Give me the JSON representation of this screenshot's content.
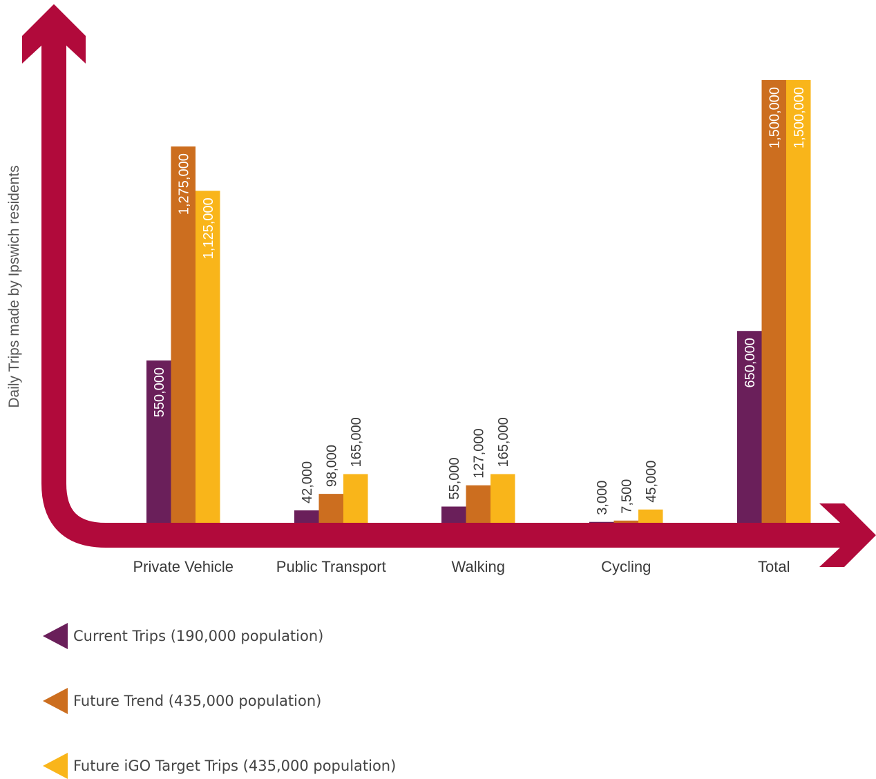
{
  "chart_data": {
    "type": "bar",
    "title": "",
    "ylabel": "Daily Trips made by Ipswich residents",
    "xlabel": "",
    "ylim": [
      0,
      1500000
    ],
    "categories": [
      "Private Vehicle",
      "Public Transport",
      "Walking",
      "Cycling",
      "Total"
    ],
    "series": [
      {
        "name": "Current Trips (190,000 population)",
        "color": "#6a1f5a",
        "values": [
          550000,
          42000,
          55000,
          3000,
          650000
        ],
        "labels": [
          "550,000",
          "42,000",
          "55,000",
          "3,000",
          "650,000"
        ]
      },
      {
        "name": "Future Trend (435,000 population)",
        "color": "#cc6e1f",
        "values": [
          1275000,
          98000,
          127000,
          7500,
          1500000
        ],
        "labels": [
          "1,275,000",
          "98,000",
          "127,000",
          "7,500",
          "1,500,000"
        ]
      },
      {
        "name": "Future iGO Target Trips (435,000 population)",
        "color": "#f9b51a",
        "values": [
          1125000,
          165000,
          165000,
          45000,
          1500000
        ],
        "labels": [
          "1,125,000",
          "165,000",
          "165,000",
          "45,000",
          "1,500,000"
        ]
      }
    ],
    "axis_color": "#b10a3b",
    "legend_position": "bottom-left",
    "grid": false
  }
}
